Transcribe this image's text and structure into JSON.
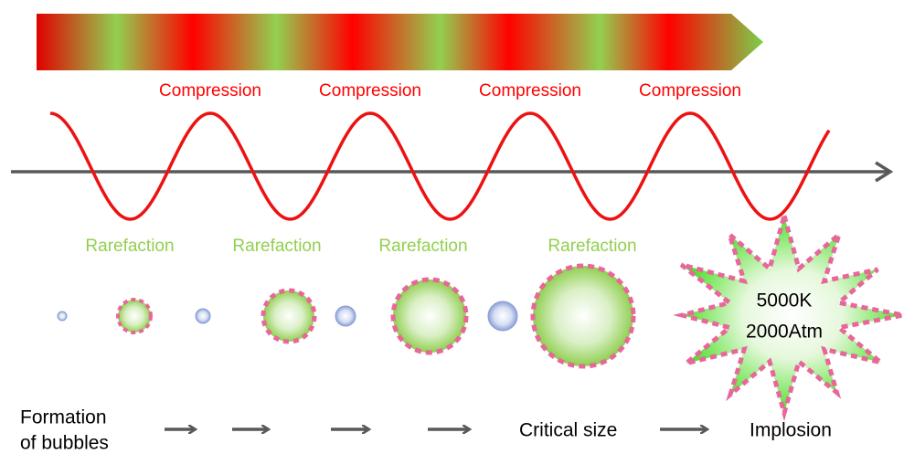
{
  "compression_labels": [
    "Compression",
    "Compression",
    "Compression",
    "Compression"
  ],
  "rarefaction_labels": [
    "Rarefaction",
    "Rarefaction",
    "Rarefaction",
    "Rarefaction"
  ],
  "implosion_conditions": {
    "temperature": "5000K",
    "pressure": "2000Atm"
  },
  "stages": {
    "formation": [
      "Formation",
      "of bubbles"
    ],
    "critical": "Critical size",
    "implosion": "Implosion"
  }
}
